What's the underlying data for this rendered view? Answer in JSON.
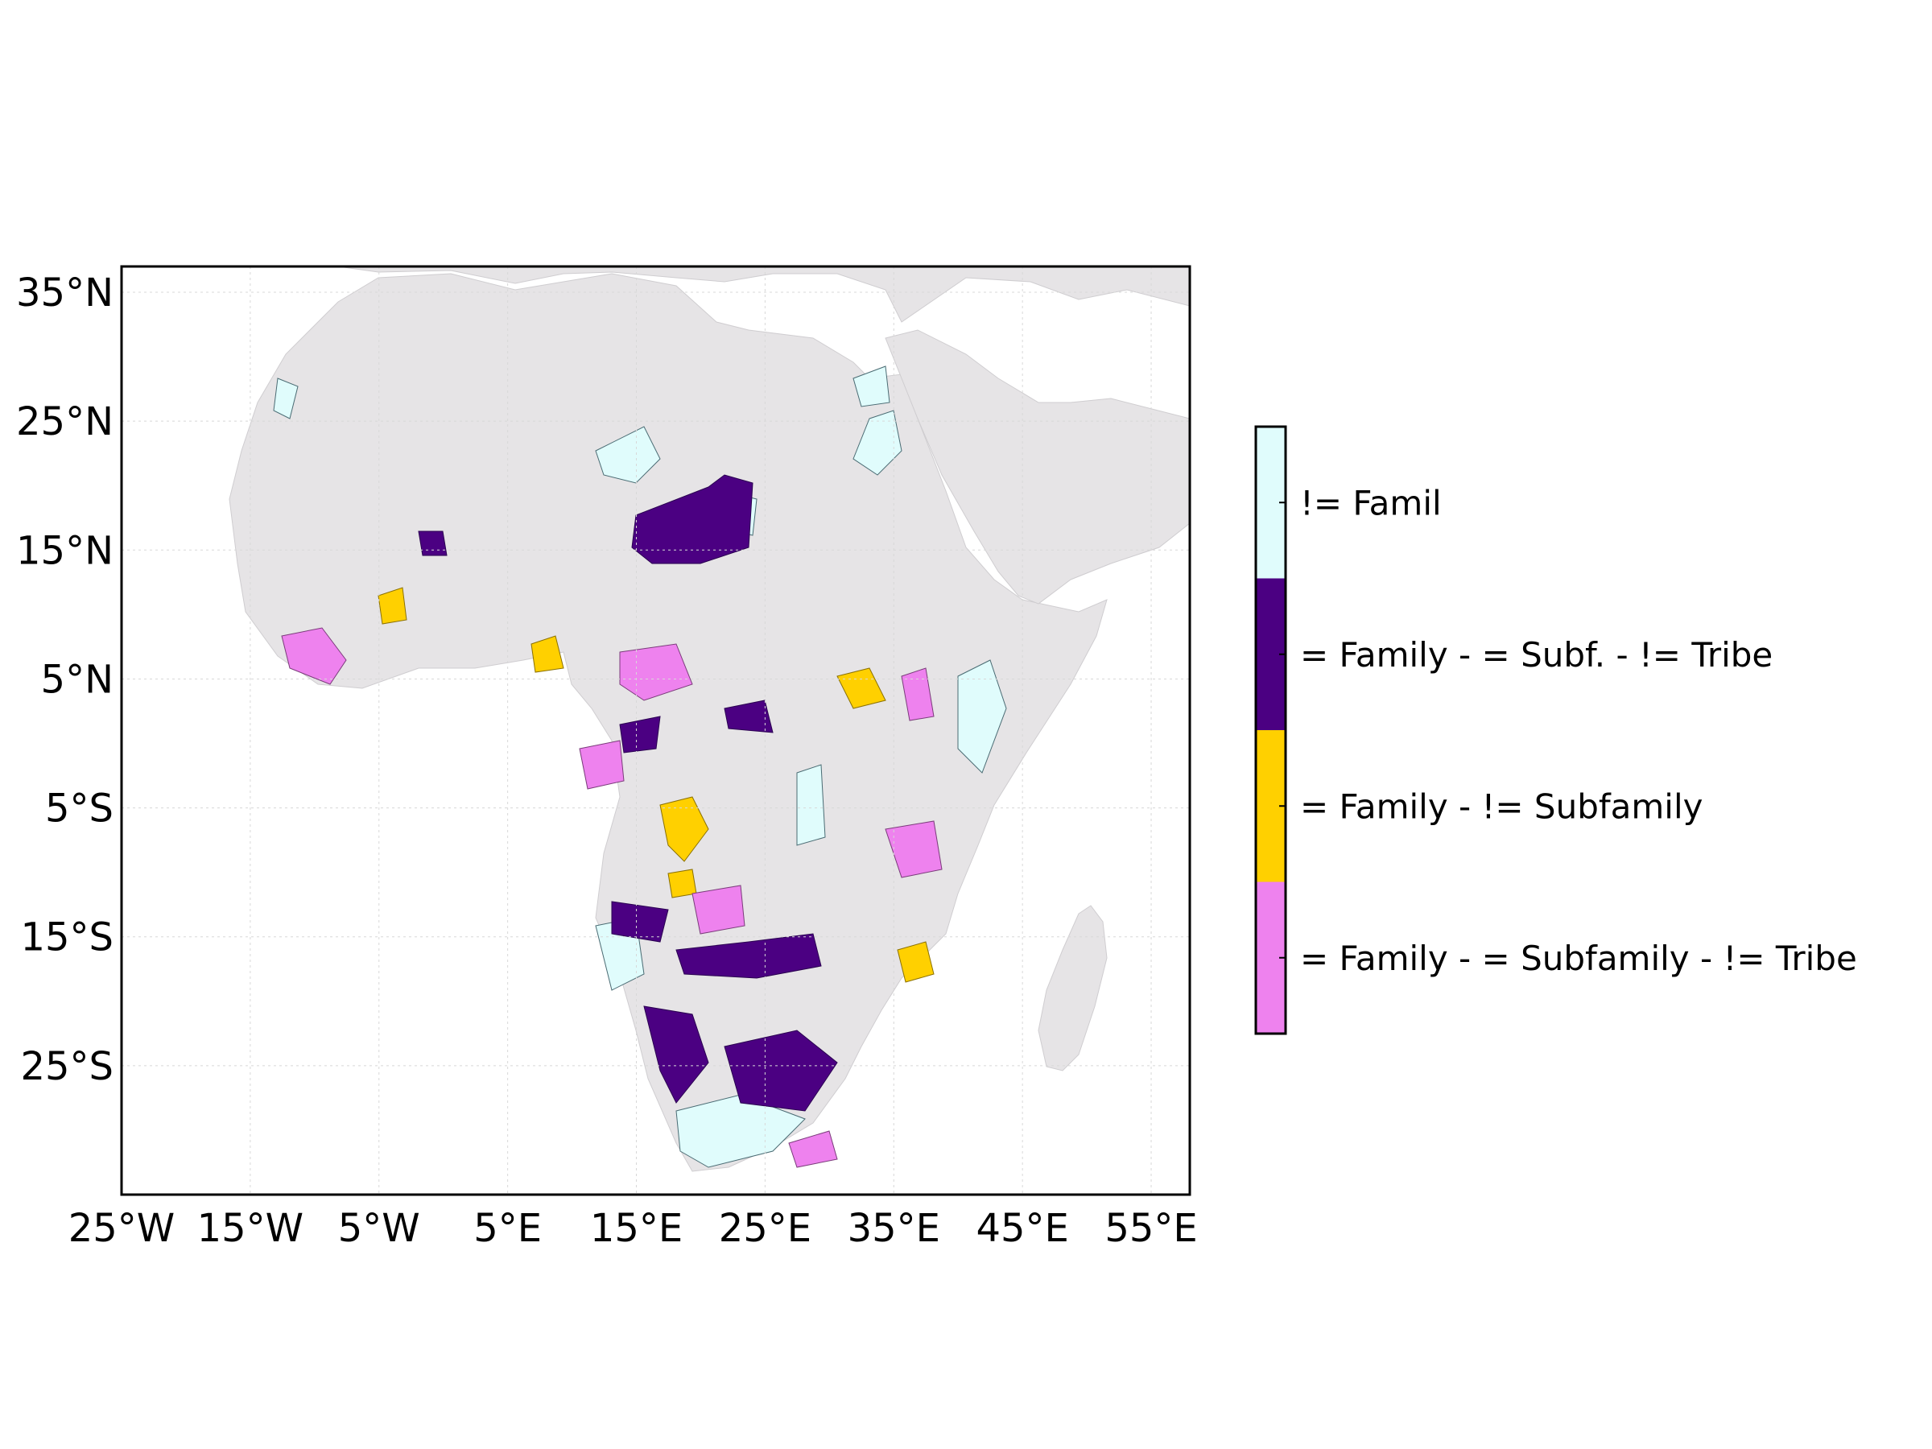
{
  "map": {
    "longitude_ticks": [
      "25°W",
      "15°W",
      "5°W",
      "5°E",
      "15°E",
      "25°E",
      "35°E",
      "45°E",
      "55°E"
    ],
    "latitude_ticks": [
      "35°N",
      "25°N",
      "15°N",
      "5°N",
      "5°S",
      "15°S",
      "25°S"
    ],
    "longitude_tick_values": [
      -25,
      -15,
      -5,
      5,
      15,
      25,
      35,
      45,
      55
    ],
    "latitude_tick_values": [
      35,
      25,
      15,
      5,
      -5,
      -15,
      -25
    ],
    "extent": {
      "lon": [
        -25,
        58
      ],
      "lat": [
        -35,
        37
      ]
    },
    "grid": true,
    "colors": {
      "land": "#e6e4e6",
      "ocean": "#ffffff",
      "not_family": "#e0fcfc",
      "same_family_same_subf_diff_tribe_dark": "#4b0082",
      "same_family_diff_subfamily": "#ffd000",
      "same_family_same_subfamily_diff_tribe": "#ee82ee"
    }
  },
  "legend": {
    "placement": "right",
    "entries": [
      {
        "label": "!= Famil",
        "color": "#e0fcfc"
      },
      {
        "label": "= Family - = Subf. - != Tribe",
        "color": "#4b0082"
      },
      {
        "label": "= Family - != Subfamily",
        "color": "#ffd000"
      },
      {
        "label": "= Family - = Subfamily - != Tribe",
        "color": "#ee82ee"
      }
    ]
  }
}
